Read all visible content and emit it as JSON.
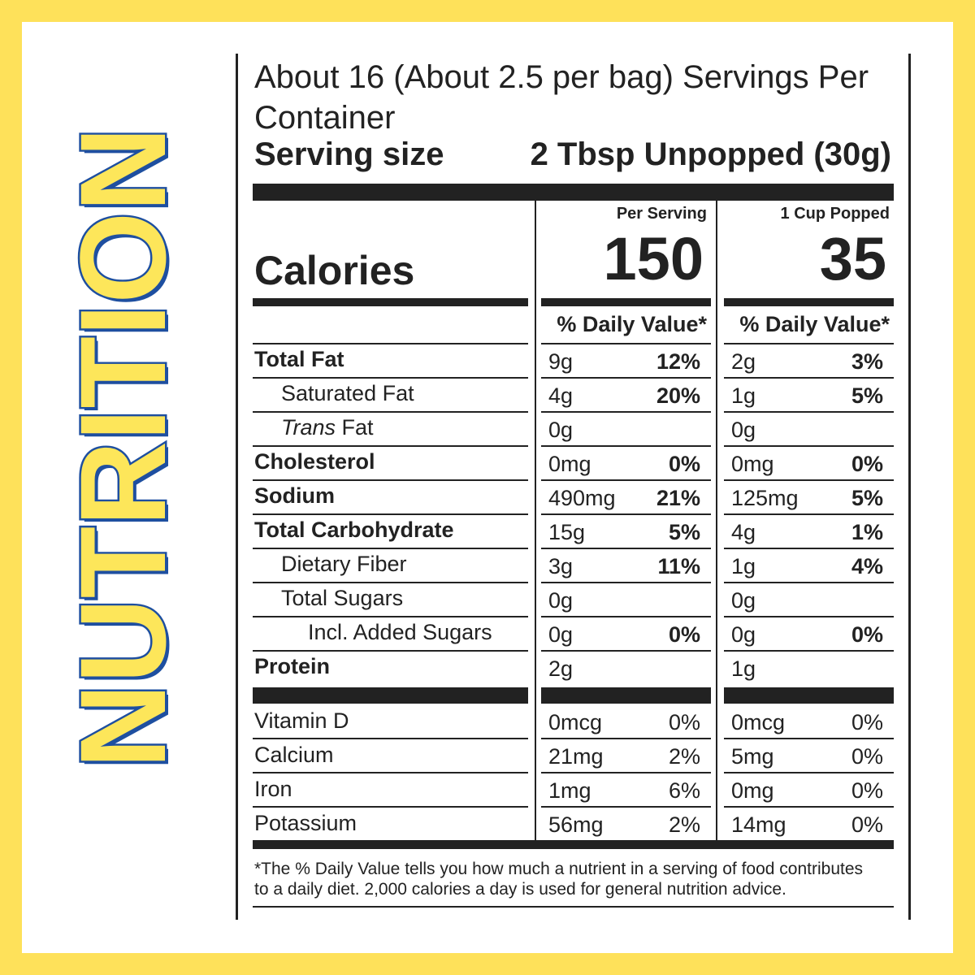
{
  "side_title": "NUTRITION",
  "servings": "About 16 (About 2.5 per bag) Servings Per Container",
  "serving_size": {
    "label": "Serving size",
    "value": "2 Tbsp Unpopped (30g)"
  },
  "calories": {
    "label": "Calories",
    "columns": [
      {
        "header": "Per Serving",
        "value": "150"
      },
      {
        "header": "1 Cup Popped",
        "value": "35"
      }
    ]
  },
  "daily_value_header": "% Daily Value*",
  "nutrients": [
    {
      "name": "Total Fat",
      "bold": true,
      "indent": 0,
      "values": [
        {
          "amount": "9g",
          "dv": "12%"
        },
        {
          "amount": "2g",
          "dv": "3%"
        }
      ]
    },
    {
      "name": "Saturated Fat",
      "bold": false,
      "indent": 1,
      "values": [
        {
          "amount": "4g",
          "dv": "20%"
        },
        {
          "amount": "1g",
          "dv": "5%"
        }
      ]
    },
    {
      "name": "Trans Fat",
      "italic_first_word": true,
      "bold": false,
      "indent": 1,
      "values": [
        {
          "amount": "0g"
        },
        {
          "amount": "0g"
        }
      ]
    },
    {
      "name": "Cholesterol",
      "bold": true,
      "indent": 0,
      "values": [
        {
          "amount": "0mg",
          "dv": "0%"
        },
        {
          "amount": "0mg",
          "dv": "0%"
        }
      ]
    },
    {
      "name": "Sodium",
      "bold": true,
      "indent": 0,
      "values": [
        {
          "amount": "490mg",
          "dv": "21%"
        },
        {
          "amount": "125mg",
          "dv": "5%"
        }
      ]
    },
    {
      "name": "Total Carbohydrate",
      "bold": true,
      "indent": 0,
      "values": [
        {
          "amount": "15g",
          "dv": "5%"
        },
        {
          "amount": "4g",
          "dv": "1%"
        }
      ]
    },
    {
      "name": "Dietary Fiber",
      "bold": false,
      "indent": 1,
      "values": [
        {
          "amount": "3g",
          "dv": "11%"
        },
        {
          "amount": "1g",
          "dv": "4%"
        }
      ]
    },
    {
      "name": "Total Sugars",
      "bold": false,
      "indent": 1,
      "values": [
        {
          "amount": "0g"
        },
        {
          "amount": "0g"
        }
      ]
    },
    {
      "name": "Incl. Added Sugars",
      "bold": false,
      "indent": 2,
      "values": [
        {
          "amount": "0g",
          "dv": "0%"
        },
        {
          "amount": "0g",
          "dv": "0%"
        }
      ]
    },
    {
      "name": "Protein",
      "bold": true,
      "indent": 0,
      "values": [
        {
          "amount": "2g"
        },
        {
          "amount": "1g"
        }
      ]
    }
  ],
  "vitamins": [
    {
      "name": "Vitamin D",
      "values": [
        {
          "amount": "0mcg",
          "dv": "0%"
        },
        {
          "amount": "0mcg",
          "dv": "0%"
        }
      ]
    },
    {
      "name": "Calcium",
      "values": [
        {
          "amount": "21mg",
          "dv": "2%"
        },
        {
          "amount": "5mg",
          "dv": "0%"
        }
      ]
    },
    {
      "name": "Iron",
      "values": [
        {
          "amount": "1mg",
          "dv": "6%"
        },
        {
          "amount": "0mg",
          "dv": "0%"
        }
      ]
    },
    {
      "name": "Potassium",
      "values": [
        {
          "amount": "56mg",
          "dv": "2%"
        },
        {
          "amount": "14mg",
          "dv": "0%"
        }
      ]
    }
  ],
  "footnote": "*The % Daily Value tells you how much a nutrient in a serving of food contributes to a daily diet. 2,000 calories a day is used for general nutrition advice."
}
